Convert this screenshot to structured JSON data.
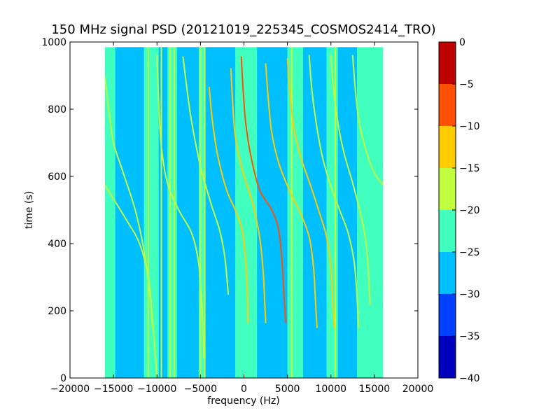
{
  "chart_data": {
    "type": "heatmap",
    "title": "150 MHz signal PSD (20121019_225345_COSMOS2414_TRO)",
    "xlabel": "frequency (Hz)",
    "ylabel": "time (s)",
    "xlim": [
      -20000,
      20000
    ],
    "ylim": [
      0,
      1000
    ],
    "x_ticks": [
      -20000,
      -15000,
      -10000,
      -5000,
      0,
      5000,
      10000,
      15000,
      20000
    ],
    "x_tick_labels": [
      "−20000",
      "−15000",
      "−10000",
      "−5000",
      "0",
      "5000",
      "10000",
      "15000",
      "20000"
    ],
    "y_ticks": [
      0,
      200,
      400,
      600,
      800,
      1000
    ],
    "y_tick_labels": [
      "0",
      "200",
      "400",
      "600",
      "800",
      "1000"
    ],
    "data_extent": {
      "freq": [
        -16000,
        16000
      ],
      "time": [
        0,
        985
      ]
    },
    "colorbar": {
      "range": [
        -40,
        0
      ],
      "levels": [
        -40,
        -35,
        -30,
        -25,
        -20,
        -15,
        -10,
        -5,
        0
      ],
      "tick_labels": [
        "−40",
        "−35",
        "−30",
        "−25",
        "−20",
        "−15",
        "−10",
        "−5",
        "0"
      ],
      "colors": [
        "#0000bf",
        "#0040ff",
        "#00bfff",
        "#40ffbf",
        "#bfff40",
        "#ffcc00",
        "#ff4f00",
        "#bf0000"
      ]
    },
    "background_level_db": -22,
    "low_band_level_db": -28,
    "low_bands_hz": [
      [
        -14800,
        -11500
      ],
      [
        -9800,
        -8800
      ],
      [
        -7700,
        -5200
      ],
      [
        -4500,
        -1000
      ],
      [
        1500,
        5000
      ],
      [
        6800,
        9500
      ],
      [
        10800,
        13000
      ]
    ],
    "vertical_lines": [
      {
        "freq": -11000,
        "level_db": -18
      },
      {
        "freq": -9500,
        "level_db": -18
      },
      {
        "freq": -8500,
        "level_db": -17
      },
      {
        "freq": -8000,
        "level_db": -19
      },
      {
        "freq": -5000,
        "level_db": -17
      },
      {
        "freq": -4500,
        "level_db": -19
      },
      {
        "freq": 5500,
        "level_db": -20
      },
      {
        "freq": 10500,
        "level_db": -20
      }
    ],
    "series": [
      {
        "level_db": -17,
        "points": [
          [
            -16000,
            575
          ],
          [
            -13500,
            470
          ],
          [
            -12000,
            400
          ],
          [
            -11000,
            300
          ],
          [
            -10500,
            170
          ],
          [
            -10200,
            70
          ],
          [
            -10000,
            0
          ]
        ]
      },
      {
        "level_db": -18,
        "points": [
          [
            -16000,
            895
          ],
          [
            -15500,
            790
          ],
          [
            -15000,
            700
          ],
          [
            -14000,
            620
          ],
          [
            -12500,
            500
          ],
          [
            -11500,
            380
          ],
          [
            -10800,
            250
          ],
          [
            -10500,
            150
          ]
        ]
      },
      {
        "level_db": -17,
        "points": [
          [
            -10000,
            960
          ],
          [
            -9800,
            820
          ],
          [
            -9500,
            690
          ],
          [
            -8800,
            580
          ],
          [
            -7500,
            500
          ],
          [
            -6000,
            430
          ],
          [
            -5200,
            340
          ],
          [
            -4800,
            200
          ],
          [
            -4600,
            60
          ]
        ]
      },
      {
        "level_db": -17,
        "points": [
          [
            -7000,
            955
          ],
          [
            -6500,
            850
          ],
          [
            -6000,
            760
          ],
          [
            -5000,
            630
          ],
          [
            -3800,
            520
          ],
          [
            -2800,
            440
          ],
          [
            -2200,
            360
          ],
          [
            -1800,
            250
          ]
        ]
      },
      {
        "level_db": -14,
        "points": [
          [
            -4000,
            865
          ],
          [
            -3600,
            760
          ],
          [
            -3000,
            660
          ],
          [
            -2000,
            560
          ],
          [
            -1000,
            500
          ],
          [
            -200,
            440
          ],
          [
            200,
            350
          ],
          [
            400,
            250
          ],
          [
            450,
            165
          ]
        ]
      },
      {
        "level_db": -12,
        "points": [
          [
            -1500,
            920
          ],
          [
            -1300,
            820
          ],
          [
            -1000,
            720
          ],
          [
            -200,
            620
          ],
          [
            1000,
            520
          ],
          [
            1800,
            420
          ],
          [
            2200,
            320
          ],
          [
            2400,
            220
          ],
          [
            2500,
            165
          ]
        ]
      },
      {
        "level_db": -10,
        "points": [
          [
            -300,
            955
          ],
          [
            -100,
            860
          ],
          [
            200,
            760
          ],
          [
            800,
            660
          ],
          [
            1800,
            560
          ],
          [
            3200,
            500
          ],
          [
            4000,
            440
          ],
          [
            4400,
            340
          ],
          [
            4600,
            250
          ],
          [
            4800,
            165
          ]
        ]
      },
      {
        "level_db": -14,
        "points": [
          [
            2500,
            935
          ],
          [
            2800,
            830
          ],
          [
            3200,
            730
          ],
          [
            4000,
            640
          ],
          [
            5200,
            560
          ],
          [
            6500,
            490
          ],
          [
            7500,
            420
          ],
          [
            8000,
            330
          ],
          [
            8200,
            240
          ],
          [
            8400,
            150
          ]
        ]
      },
      {
        "level_db": -12,
        "points": [
          [
            5000,
            950
          ],
          [
            5300,
            850
          ],
          [
            5700,
            750
          ],
          [
            6500,
            660
          ],
          [
            7700,
            570
          ],
          [
            8700,
            490
          ],
          [
            9500,
            420
          ],
          [
            10000,
            330
          ],
          [
            10200,
            230
          ],
          [
            10400,
            150
          ]
        ]
      },
      {
        "level_db": -18,
        "points": [
          [
            7500,
            960
          ],
          [
            7800,
            860
          ],
          [
            8300,
            760
          ],
          [
            9000,
            660
          ],
          [
            10000,
            570
          ],
          [
            11000,
            500
          ],
          [
            12000,
            430
          ],
          [
            12700,
            340
          ],
          [
            13000,
            240
          ],
          [
            13200,
            150
          ]
        ]
      },
      {
        "level_db": -17,
        "points": [
          [
            10000,
            960
          ],
          [
            10300,
            860
          ],
          [
            10800,
            760
          ],
          [
            11500,
            670
          ],
          [
            12500,
            580
          ],
          [
            13400,
            490
          ],
          [
            14000,
            410
          ],
          [
            14300,
            320
          ],
          [
            14500,
            220
          ]
        ]
      },
      {
        "level_db": -18,
        "points": [
          [
            12500,
            960
          ],
          [
            12800,
            860
          ],
          [
            13200,
            770
          ],
          [
            14000,
            680
          ],
          [
            15000,
            610
          ],
          [
            16000,
            575
          ]
        ]
      }
    ]
  }
}
